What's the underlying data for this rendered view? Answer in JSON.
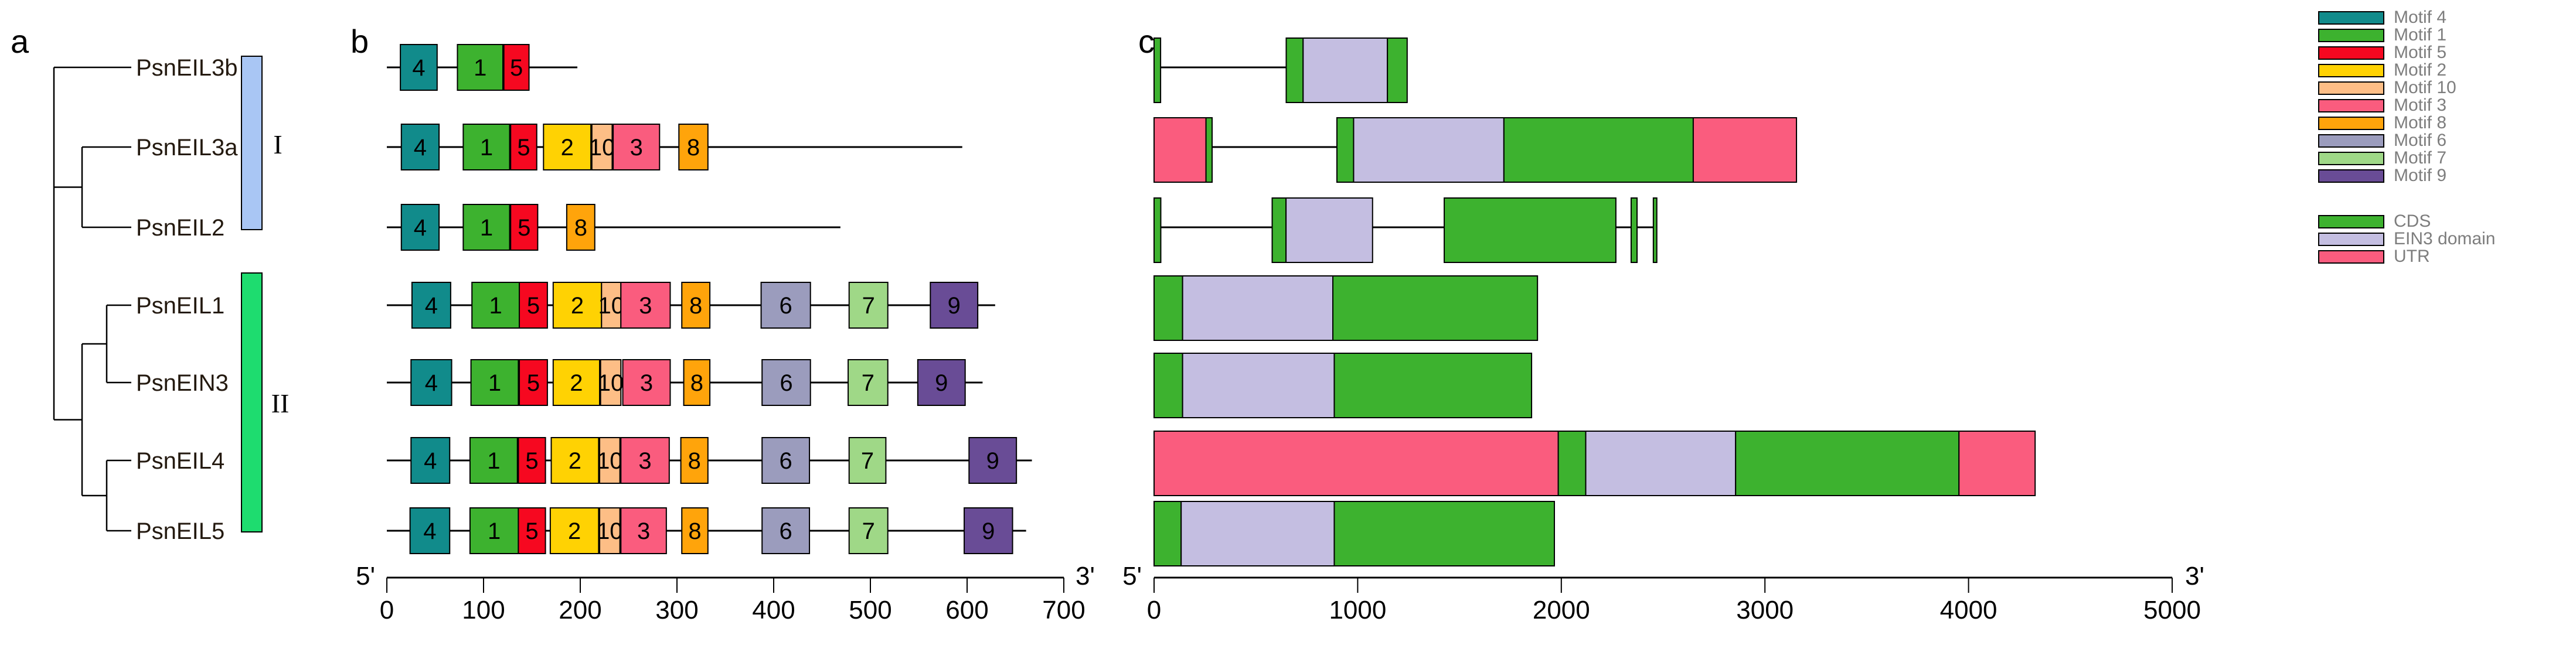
{
  "panels": {
    "a": "a",
    "b": "b",
    "c": "c"
  },
  "tree": {
    "leaves": [
      {
        "name": "PsnEIL3b"
      },
      {
        "name": "PsnEIL3a"
      },
      {
        "name": "PsnEIL2"
      },
      {
        "name": "PsnEIL1"
      },
      {
        "name": "PsnEIN3"
      },
      {
        "name": "PsnEIL4"
      },
      {
        "name": "PsnEIL5"
      }
    ],
    "groups": [
      {
        "label": "I",
        "color": "#a9c6f4",
        "first_leaf": 0,
        "last_leaf": 2
      },
      {
        "label": "II",
        "color": "#1edc6f",
        "first_leaf": 3,
        "last_leaf": 6
      }
    ]
  },
  "motif_colors": {
    "4": "#118b8b",
    "1": "#3db22f",
    "5": "#f60820",
    "2": "#ffd203",
    "10": "#fdbe86",
    "3": "#fa5c7e",
    "8": "#ffa40b",
    "6": "#9b9cbd",
    "7": "#9fd887",
    "9": "#694c96"
  },
  "feature_colors": {
    "CDS": "#3db22f",
    "EIN3": "#c4bee1",
    "UTR": "#fa5c7e"
  },
  "legend": {
    "motifs": [
      {
        "label": "Motif 4",
        "color": "#118b8b"
      },
      {
        "label": "Motif 1",
        "color": "#3db22f"
      },
      {
        "label": "Motif 5",
        "color": "#f60820"
      },
      {
        "label": "Motif 2",
        "color": "#ffd203"
      },
      {
        "label": "Motif 10",
        "color": "#fdbe86"
      },
      {
        "label": "Motif 3",
        "color": "#fa5c7e"
      },
      {
        "label": "Motif 8",
        "color": "#ffa40b"
      },
      {
        "label": "Motif 6",
        "color": "#9b9cbd"
      },
      {
        "label": "Motif 7",
        "color": "#9fd887"
      },
      {
        "label": "Motif 9",
        "color": "#694c96"
      }
    ],
    "features": [
      {
        "label": "CDS",
        "color": "#3db22f"
      },
      {
        "label": "EIN3 domain",
        "color": "#c4bee1"
      },
      {
        "label": "UTR",
        "color": "#fa5c7e"
      }
    ]
  },
  "chart_data": [
    {
      "type": "motif-map",
      "panel": "b",
      "axis": {
        "label_left": "5'",
        "label_right": "3'",
        "range": [
          0,
          700
        ],
        "ticks": [
          0,
          100,
          200,
          300,
          400,
          500,
          600,
          700
        ]
      },
      "genes": [
        {
          "name": "PsnEIL3b",
          "length": 197,
          "motifs": [
            {
              "id": "4",
              "start": 14,
              "end": 52
            },
            {
              "id": "1",
              "start": 73,
              "end": 120
            },
            {
              "id": "5",
              "start": 121,
              "end": 147
            }
          ]
        },
        {
          "name": "PsnEIL3a",
          "length": 595,
          "motifs": [
            {
              "id": "4",
              "start": 15,
              "end": 54
            },
            {
              "id": "1",
              "start": 79,
              "end": 127
            },
            {
              "id": "5",
              "start": 128,
              "end": 155
            },
            {
              "id": "2",
              "start": 162,
              "end": 211
            },
            {
              "id": "10",
              "start": 212,
              "end": 233
            },
            {
              "id": "3",
              "start": 234,
              "end": 282
            },
            {
              "id": "8",
              "start": 302,
              "end": 332
            }
          ]
        },
        {
          "name": "PsnEIL2",
          "length": 469,
          "motifs": [
            {
              "id": "4",
              "start": 15,
              "end": 54
            },
            {
              "id": "1",
              "start": 79,
              "end": 127
            },
            {
              "id": "5",
              "start": 128,
              "end": 156
            },
            {
              "id": "8",
              "start": 186,
              "end": 215
            }
          ]
        },
        {
          "name": "PsnEIL1",
          "length": 629,
          "motifs": [
            {
              "id": "4",
              "start": 26,
              "end": 66
            },
            {
              "id": "1",
              "start": 88,
              "end": 137
            },
            {
              "id": "5",
              "start": 137,
              "end": 166
            },
            {
              "id": "2",
              "start": 172,
              "end": 222
            },
            {
              "id": "10",
              "start": 222,
              "end": 242
            },
            {
              "id": "3",
              "start": 242,
              "end": 293
            },
            {
              "id": "8",
              "start": 305,
              "end": 334
            },
            {
              "id": "6",
              "start": 387,
              "end": 438
            },
            {
              "id": "7",
              "start": 478,
              "end": 518
            },
            {
              "id": "9",
              "start": 562,
              "end": 611
            }
          ]
        },
        {
          "name": "PsnEIN3",
          "length": 616,
          "motifs": [
            {
              "id": "4",
              "start": 25,
              "end": 67
            },
            {
              "id": "1",
              "start": 87,
              "end": 136
            },
            {
              "id": "5",
              "start": 137,
              "end": 166
            },
            {
              "id": "2",
              "start": 172,
              "end": 220
            },
            {
              "id": "10",
              "start": 221,
              "end": 242
            },
            {
              "id": "3",
              "start": 244,
              "end": 293
            },
            {
              "id": "8",
              "start": 307,
              "end": 334
            },
            {
              "id": "6",
              "start": 388,
              "end": 438
            },
            {
              "id": "7",
              "start": 477,
              "end": 518
            },
            {
              "id": "9",
              "start": 549,
              "end": 598
            }
          ]
        },
        {
          "name": "PsnEIL4",
          "length": 667,
          "motifs": [
            {
              "id": "4",
              "start": 25,
              "end": 65
            },
            {
              "id": "1",
              "start": 86,
              "end": 135
            },
            {
              "id": "5",
              "start": 136,
              "end": 164
            },
            {
              "id": "2",
              "start": 170,
              "end": 219
            },
            {
              "id": "10",
              "start": 220,
              "end": 241
            },
            {
              "id": "3",
              "start": 242,
              "end": 292
            },
            {
              "id": "8",
              "start": 304,
              "end": 332
            },
            {
              "id": "6",
              "start": 388,
              "end": 437
            },
            {
              "id": "7",
              "start": 478,
              "end": 516
            },
            {
              "id": "9",
              "start": 602,
              "end": 651
            }
          ]
        },
        {
          "name": "PsnEIL5",
          "length": 661,
          "motifs": [
            {
              "id": "4",
              "start": 24,
              "end": 65
            },
            {
              "id": "1",
              "start": 86,
              "end": 136
            },
            {
              "id": "5",
              "start": 136,
              "end": 164
            },
            {
              "id": "2",
              "start": 169,
              "end": 219
            },
            {
              "id": "10",
              "start": 220,
              "end": 241
            },
            {
              "id": "3",
              "start": 242,
              "end": 289
            },
            {
              "id": "8",
              "start": 305,
              "end": 332
            },
            {
              "id": "6",
              "start": 388,
              "end": 437
            },
            {
              "id": "7",
              "start": 478,
              "end": 518
            },
            {
              "id": "9",
              "start": 597,
              "end": 647
            }
          ]
        }
      ]
    },
    {
      "type": "gene-structure",
      "panel": "c",
      "axis": {
        "label_left": "5'",
        "label_right": "3'",
        "range": [
          0,
          5000
        ],
        "ticks": [
          0,
          1000,
          2000,
          3000,
          4000,
          5000
        ]
      },
      "genes": [
        {
          "name": "PsnEIL3b",
          "length": 1243,
          "segments": [
            {
              "kind": "CDS",
              "start": 0,
              "end": 32
            },
            {
              "kind": "intron",
              "start": 32,
              "end": 649
            },
            {
              "kind": "CDS",
              "start": 649,
              "end": 732
            },
            {
              "kind": "EIN3",
              "start": 732,
              "end": 1146
            },
            {
              "kind": "CDS",
              "start": 1146,
              "end": 1243
            }
          ]
        },
        {
          "name": "PsnEIL3a",
          "length": 3155,
          "segments": [
            {
              "kind": "UTR",
              "start": 0,
              "end": 255
            },
            {
              "kind": "CDS",
              "start": 255,
              "end": 285
            },
            {
              "kind": "intron",
              "start": 285,
              "end": 898
            },
            {
              "kind": "CDS",
              "start": 898,
              "end": 980
            },
            {
              "kind": "EIN3",
              "start": 980,
              "end": 1718
            },
            {
              "kind": "CDS",
              "start": 1718,
              "end": 2648
            },
            {
              "kind": "UTR",
              "start": 2648,
              "end": 3155
            }
          ]
        },
        {
          "name": "PsnEIL2",
          "length": 2469,
          "segments": [
            {
              "kind": "CDS",
              "start": 0,
              "end": 33
            },
            {
              "kind": "intron",
              "start": 33,
              "end": 580
            },
            {
              "kind": "CDS",
              "start": 580,
              "end": 648
            },
            {
              "kind": "EIN3",
              "start": 648,
              "end": 1073
            },
            {
              "kind": "intron",
              "start": 1073,
              "end": 1425
            },
            {
              "kind": "CDS",
              "start": 1425,
              "end": 2268
            },
            {
              "kind": "intron",
              "start": 2268,
              "end": 2343
            },
            {
              "kind": "CDS",
              "start": 2343,
              "end": 2372
            },
            {
              "kind": "intron",
              "start": 2372,
              "end": 2452
            },
            {
              "kind": "CDS",
              "start": 2452,
              "end": 2469
            }
          ]
        },
        {
          "name": "PsnEIL1",
          "length": 1883,
          "segments": [
            {
              "kind": "CDS",
              "start": 0,
              "end": 140
            },
            {
              "kind": "EIN3",
              "start": 140,
              "end": 878
            },
            {
              "kind": "CDS",
              "start": 878,
              "end": 1883
            }
          ]
        },
        {
          "name": "PsnEIN3",
          "length": 1854,
          "segments": [
            {
              "kind": "CDS",
              "start": 0,
              "end": 140
            },
            {
              "kind": "EIN3",
              "start": 140,
              "end": 885
            },
            {
              "kind": "CDS",
              "start": 885,
              "end": 1854
            }
          ]
        },
        {
          "name": "PsnEIL4",
          "length": 4327,
          "segments": [
            {
              "kind": "UTR",
              "start": 0,
              "end": 1985
            },
            {
              "kind": "CDS",
              "start": 1985,
              "end": 2120
            },
            {
              "kind": "EIN3",
              "start": 2120,
              "end": 2856
            },
            {
              "kind": "CDS",
              "start": 2856,
              "end": 3953
            },
            {
              "kind": "UTR",
              "start": 3953,
              "end": 4327
            }
          ]
        },
        {
          "name": "PsnEIL5",
          "length": 1966,
          "segments": [
            {
              "kind": "CDS",
              "start": 0,
              "end": 133
            },
            {
              "kind": "EIN3",
              "start": 133,
              "end": 885
            },
            {
              "kind": "CDS",
              "start": 885,
              "end": 1966
            }
          ]
        }
      ]
    }
  ]
}
